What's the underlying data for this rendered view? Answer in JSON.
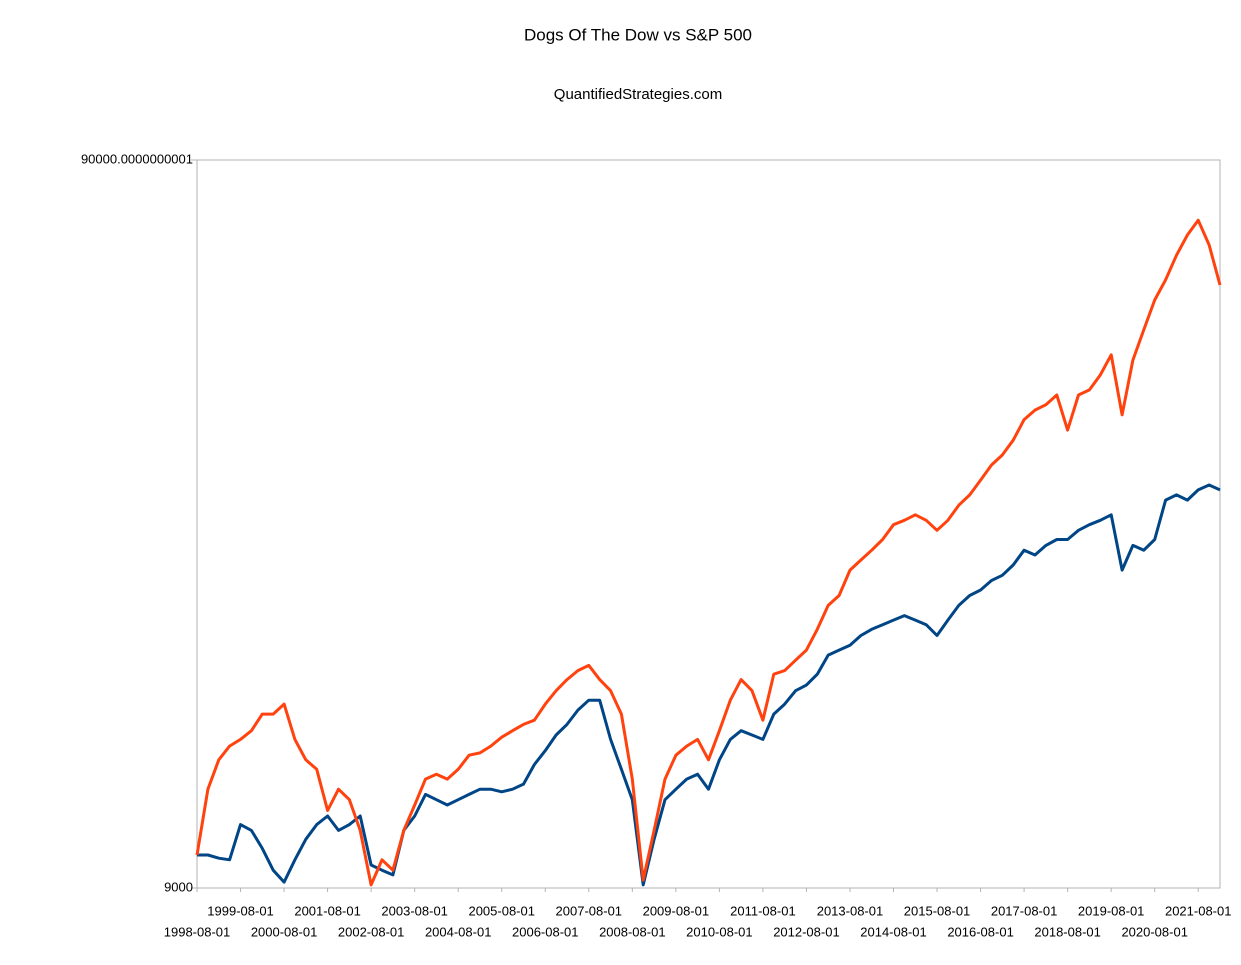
{
  "chart_data": {
    "type": "line",
    "title": "Dogs Of The Dow vs S&P 500",
    "subtitle": "QuantifiedStrategies.com",
    "categories": [
      "1998-08-01",
      null,
      null,
      null,
      "1999-08-01",
      null,
      null,
      null,
      "2000-08-01",
      null,
      null,
      null,
      "2001-08-01",
      null,
      null,
      null,
      "2002-08-01",
      null,
      null,
      null,
      "2003-08-01",
      null,
      null,
      null,
      "2004-08-01",
      null,
      null,
      null,
      "2005-08-01",
      null,
      null,
      null,
      "2006-08-01",
      null,
      null,
      null,
      "2007-08-01",
      null,
      null,
      null,
      "2008-08-01",
      null,
      null,
      null,
      "2009-08-01",
      null,
      null,
      null,
      "2010-08-01",
      null,
      null,
      null,
      "2011-08-01",
      null,
      null,
      null,
      "2012-08-01",
      null,
      null,
      null,
      "2013-08-01",
      null,
      null,
      null,
      "2014-08-01",
      null,
      null,
      null,
      "2015-08-01",
      null,
      null,
      null,
      "2016-08-01",
      null,
      null,
      null,
      "2017-08-01",
      null,
      null,
      null,
      "2018-08-01",
      null,
      null,
      null,
      "2019-08-01",
      null,
      null,
      null,
      "2020-08-01",
      null,
      null,
      null,
      "2021-08-01",
      null,
      null
    ],
    "series": [
      {
        "color": "#ff420e",
        "values": [
          9990,
          12300,
          13500,
          14100,
          14400,
          14800,
          15600,
          15600,
          16100,
          14400,
          13500,
          13100,
          11500,
          12300,
          11900,
          10800,
          9090,
          9840,
          9520,
          10800,
          11700,
          12700,
          12900,
          12700,
          13100,
          13700,
          13800,
          14100,
          14500,
          14800,
          15100,
          15300,
          16100,
          16800,
          17400,
          17900,
          18200,
          17400,
          16800,
          15600,
          12700,
          9230,
          10800,
          12700,
          13700,
          14100,
          14400,
          13500,
          14800,
          16300,
          17400,
          16800,
          15300,
          17700,
          17900,
          18500,
          19100,
          20400,
          22000,
          22700,
          24600,
          25400,
          26200,
          27100,
          28400,
          28800,
          29300,
          28800,
          27900,
          28800,
          30200,
          31200,
          32700,
          34300,
          35400,
          37100,
          39600,
          40800,
          41500,
          42800,
          38300,
          42800,
          43500,
          45600,
          48600,
          40200,
          47800,
          52600,
          57800,
          61600,
          66600,
          71000,
          74400,
          68800,
          60600
        ]
      },
      {
        "color": "#004586",
        "values": [
          9990,
          9990,
          9890,
          9840,
          11000,
          10800,
          10200,
          9520,
          9170,
          9840,
          10500,
          11000,
          11300,
          10800,
          11000,
          11300,
          9680,
          9520,
          9380,
          10800,
          11300,
          12100,
          11900,
          11700,
          11900,
          12100,
          12300,
          12300,
          12200,
          12300,
          12500,
          13300,
          13900,
          14600,
          15100,
          15800,
          16300,
          16300,
          14400,
          13100,
          11900,
          9090,
          10500,
          11900,
          12300,
          12700,
          12900,
          12300,
          13500,
          14400,
          14800,
          14600,
          14400,
          15600,
          16100,
          16800,
          17100,
          17700,
          18800,
          19100,
          19400,
          20000,
          20400,
          20700,
          21000,
          21300,
          21000,
          20700,
          20000,
          21000,
          22000,
          22700,
          23100,
          23800,
          24200,
          25000,
          26200,
          25800,
          26600,
          27100,
          27100,
          27900,
          28400,
          28800,
          29300,
          24600,
          26600,
          26200,
          27100,
          30700,
          31200,
          30700,
          31700,
          32200,
          31700
        ]
      }
    ],
    "ylim": [
      9000,
      90000
    ],
    "yticks": [
      9000,
      {
        "value": 90000,
        "label": "90000.0000000001"
      }
    ],
    "log_y": true,
    "grid": false
  }
}
